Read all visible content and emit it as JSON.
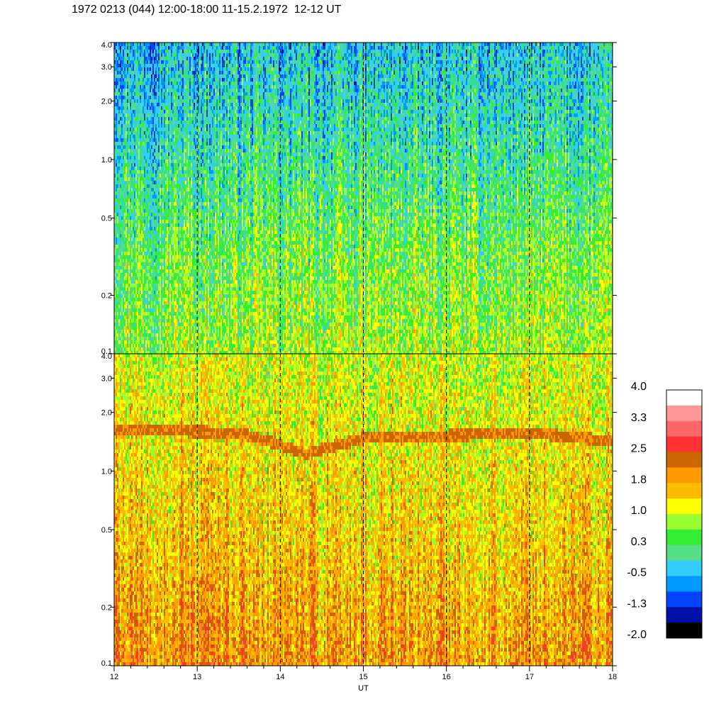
{
  "title": "1972 0213 (044) 12:00-18:00 11-15.2.1972  12-12 UT",
  "chart_data": [
    {
      "type": "heatmap",
      "panel": "upper",
      "x_range": [
        12,
        18
      ],
      "y_scale": "log",
      "y_range": [
        0.1,
        4.0
      ],
      "y_ticks": [
        "4.0",
        "3.0",
        "2.0",
        "1.0",
        "0.5",
        "0.2",
        "0.1"
      ],
      "y_tick_values": [
        4.0,
        3.0,
        2.0,
        1.0,
        0.5,
        0.2,
        0.1
      ],
      "dominant_levels_low_to_high_freq": [
        0.8,
        0.5,
        0.0,
        -0.4
      ],
      "hour_markers": [
        13,
        14,
        15,
        16,
        17
      ]
    },
    {
      "type": "heatmap",
      "panel": "lower",
      "x_range": [
        12,
        18
      ],
      "y_scale": "log",
      "y_range": [
        0.1,
        4.0
      ],
      "y_ticks": [
        "4.0",
        "3.0",
        "2.0",
        "1.0",
        "0.5",
        "0.2",
        "0.1"
      ],
      "y_tick_values": [
        4.0,
        3.0,
        2.0,
        1.0,
        0.5,
        0.2,
        0.1
      ],
      "xlabel": "UT",
      "x_ticks": [
        "12",
        "13",
        "14",
        "15",
        "16",
        "17",
        "18"
      ],
      "x_tick_values": [
        12,
        13,
        14,
        15,
        16,
        17,
        18
      ],
      "dominant_levels_low_to_high_freq": [
        2.0,
        1.6,
        1.3,
        1.0
      ],
      "band_level": 2.2,
      "band_freq_by_hour": [
        [
          12.5,
          1.65
        ],
        [
          13.5,
          1.6
        ],
        [
          14.3,
          1.25
        ],
        [
          15.0,
          1.5
        ],
        [
          16.0,
          1.55
        ],
        [
          17.0,
          1.6
        ],
        [
          18.0,
          1.45
        ]
      ],
      "hour_markers": [
        13,
        14,
        15,
        16,
        17
      ]
    }
  ],
  "colorbar": {
    "labels": [
      "4.0",
      "3.3",
      "2.5",
      "1.8",
      "1.0",
      "0.3",
      "-0.5",
      "-1.3",
      "-2.0"
    ],
    "colors_top_to_bottom": [
      "#ffffff",
      "#ff9999",
      "#ff6666",
      "#ff3333",
      "#cc6600",
      "#ff9900",
      "#ffbb00",
      "#ffff00",
      "#99ff33",
      "#33ee33",
      "#55dd88",
      "#33ccff",
      "#0099ff",
      "#0044ff",
      "#0011aa",
      "#000000"
    ]
  }
}
